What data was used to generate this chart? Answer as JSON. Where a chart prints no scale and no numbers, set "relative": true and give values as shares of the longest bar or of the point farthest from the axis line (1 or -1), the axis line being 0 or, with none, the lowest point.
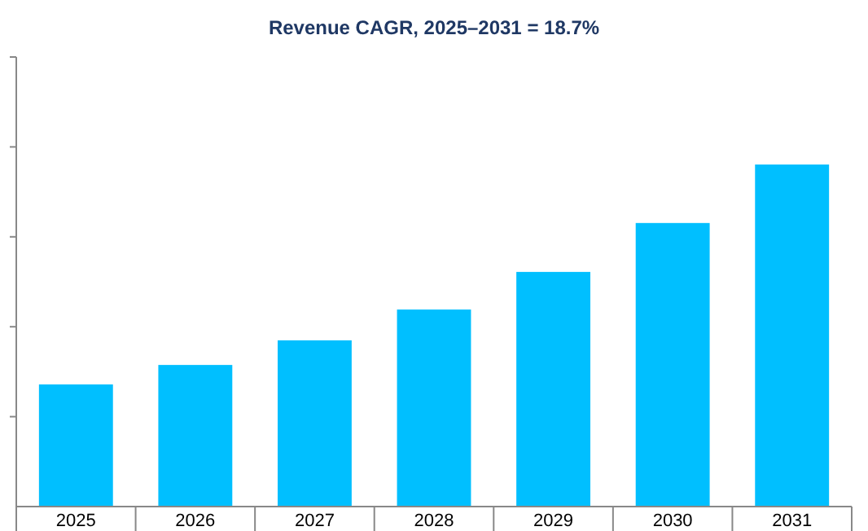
{
  "chart_data": {
    "type": "bar",
    "title": "Revenue CAGR, 2025–2031 = 18.7%",
    "categories": [
      "2025",
      "2026",
      "2027",
      "2028",
      "2029",
      "2030",
      "2031"
    ],
    "values": [
      0.357,
      0.414,
      0.486,
      0.576,
      0.686,
      0.829,
      1
    ],
    "color": "#00bfff",
    "relative": true
  }
}
